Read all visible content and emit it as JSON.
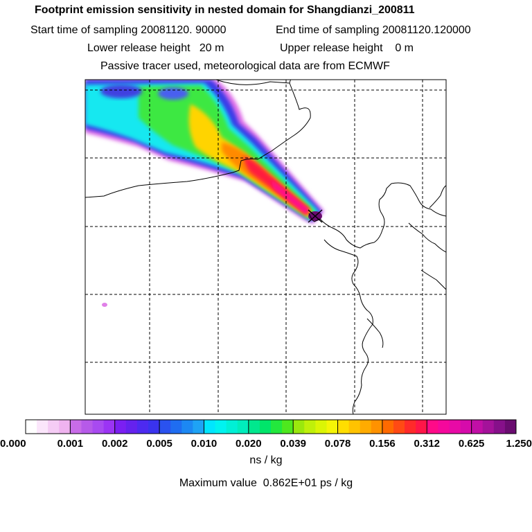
{
  "chart_data": {
    "type": "heatmap",
    "title": "Footprint emission sensitivity in nested domain for Shangdianzi_200811",
    "subtitle_lines": [
      {
        "left": "Start time of sampling 20081120. 90000",
        "right": "End time of sampling 20081120.120000"
      },
      {
        "left": "Lower release height   20 m",
        "right": "Upper release height    0 m"
      },
      {
        "left": "Passive tracer used, meteorological data are from ECMWF",
        "right": ""
      }
    ],
    "colorbar": {
      "tick_labels": [
        "0.000",
        "0.001",
        "0.002",
        "0.005",
        "0.010",
        "0.020",
        "0.039",
        "0.078",
        "0.156",
        "0.312",
        "0.625",
        "1.250"
      ],
      "units": "ns / kg",
      "colors": [
        "#ffffff",
        "#fbe6fb",
        "#f5ccf5",
        "#efb3ef",
        "#c86ce8",
        "#b65ae9",
        "#a84af0",
        "#9b34f4",
        "#7b1ff2",
        "#6522ee",
        "#4d2af0",
        "#3a33ee",
        "#2a52ef",
        "#1f6df1",
        "#1c88f3",
        "#1ea3f5",
        "#00e6ff",
        "#00f3f0",
        "#00f0d6",
        "#00edbc",
        "#00e88e",
        "#00e56a",
        "#23e83d",
        "#4ee81e",
        "#9ae80d",
        "#bff00a",
        "#dbf505",
        "#f5f506",
        "#ffde00",
        "#ffc300",
        "#ffab00",
        "#ff9200",
        "#ff6a00",
        "#ff4a14",
        "#ff2a2a",
        "#ff1648",
        "#ff0a88",
        "#f5089c",
        "#e80aa6",
        "#d60bab",
        "#c10fa6",
        "#a4129a",
        "#86108a",
        "#6a0c70"
      ]
    },
    "maximum_value_text": "Maximum value  0.862E+01 ps / kg",
    "map": {
      "grid": "dashed",
      "receptor_marker": "x",
      "plume_direction": "from northwest toward receptor"
    }
  }
}
